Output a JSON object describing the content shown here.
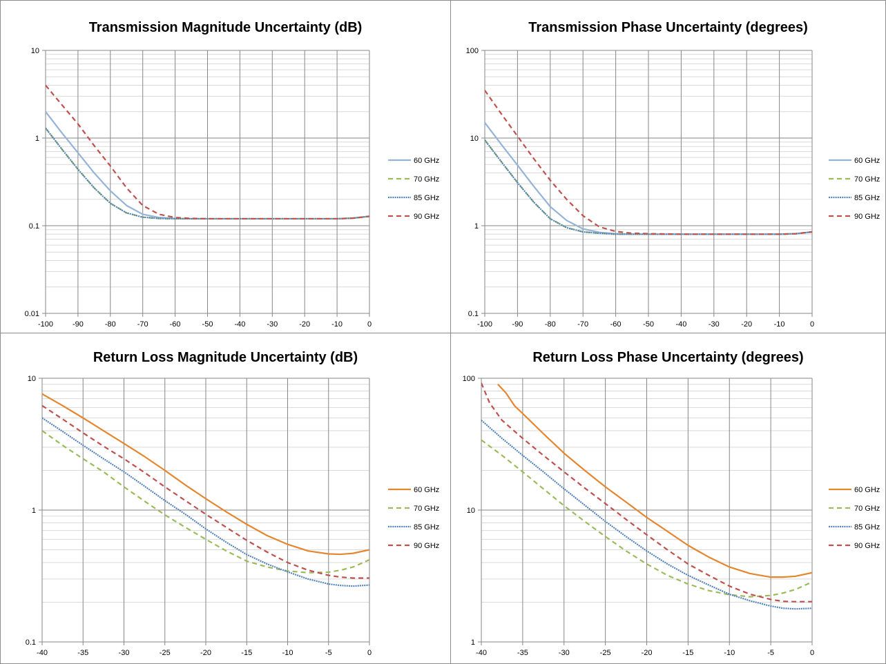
{
  "chart_data": [
    {
      "type": "line",
      "title": "Transmission Magnitude Uncertainty (dB)",
      "yscale": "log",
      "ylim": [
        0.01,
        10
      ],
      "xlim": [
        -100,
        0
      ],
      "x_ticks": [
        "-100",
        "-90",
        "-80",
        "-70",
        "-60",
        "-50",
        "-40",
        "-30",
        "-20",
        "-10",
        "0"
      ],
      "y_ticks": [
        "10",
        "1",
        "0.1",
        "0.01"
      ],
      "grid": true,
      "legend_position": "right",
      "x": [
        -100,
        -95,
        -90,
        -85,
        -80,
        -75,
        -70,
        -65,
        -60,
        -55,
        -50,
        -40,
        -30,
        -20,
        -10,
        -5,
        0
      ],
      "series": [
        {
          "name": "60 GHz",
          "color": "#95b3d7",
          "dash": "solid",
          "values": [
            2.0,
            1.15,
            0.68,
            0.4,
            0.25,
            0.17,
            0.135,
            0.124,
            0.121,
            0.12,
            0.12,
            0.12,
            0.12,
            0.12,
            0.12,
            0.122,
            0.128
          ]
        },
        {
          "name": "70 GHz",
          "color": "#9bbb59",
          "dash": "dash",
          "values": [
            1.3,
            0.75,
            0.44,
            0.27,
            0.18,
            0.14,
            0.125,
            0.121,
            0.12,
            0.12,
            0.12,
            0.12,
            0.12,
            0.12,
            0.12,
            0.122,
            0.128
          ]
        },
        {
          "name": "85 GHz",
          "color": "#4f81bd",
          "dash": "dot",
          "values": [
            1.3,
            0.75,
            0.44,
            0.27,
            0.18,
            0.14,
            0.125,
            0.121,
            0.12,
            0.12,
            0.12,
            0.12,
            0.12,
            0.12,
            0.12,
            0.122,
            0.128
          ]
        },
        {
          "name": "90 GHz",
          "color": "#c0504d",
          "dash": "dash",
          "values": [
            4.0,
            2.4,
            1.45,
            0.82,
            0.48,
            0.27,
            0.17,
            0.135,
            0.124,
            0.121,
            0.12,
            0.12,
            0.12,
            0.12,
            0.12,
            0.122,
            0.128
          ]
        }
      ]
    },
    {
      "type": "line",
      "title": "Transmission Phase Uncertainty (degrees)",
      "yscale": "log",
      "ylim": [
        0.1,
        100
      ],
      "xlim": [
        -100,
        0
      ],
      "x_ticks": [
        "-100",
        "-90",
        "-80",
        "-70",
        "-60",
        "-50",
        "-40",
        "-30",
        "-20",
        "-10",
        "0"
      ],
      "y_ticks": [
        "100",
        "10",
        "1",
        "0.1"
      ],
      "grid": true,
      "legend_position": "right",
      "x": [
        -100,
        -95,
        -90,
        -85,
        -80,
        -75,
        -70,
        -65,
        -60,
        -55,
        -50,
        -40,
        -30,
        -20,
        -10,
        -5,
        0
      ],
      "series": [
        {
          "name": "60 GHz",
          "color": "#95b3d7",
          "dash": "solid",
          "values": [
            15,
            8.5,
            4.9,
            2.8,
            1.65,
            1.15,
            0.92,
            0.84,
            0.81,
            0.8,
            0.8,
            0.8,
            0.8,
            0.8,
            0.8,
            0.81,
            0.85
          ]
        },
        {
          "name": "70 GHz",
          "color": "#9bbb59",
          "dash": "dash",
          "values": [
            9.5,
            5.4,
            3.1,
            1.85,
            1.2,
            0.95,
            0.85,
            0.82,
            0.8,
            0.8,
            0.8,
            0.8,
            0.8,
            0.8,
            0.8,
            0.81,
            0.85
          ]
        },
        {
          "name": "85 GHz",
          "color": "#4f81bd",
          "dash": "dot",
          "values": [
            9.5,
            5.4,
            3.1,
            1.85,
            1.2,
            0.95,
            0.85,
            0.82,
            0.8,
            0.8,
            0.8,
            0.8,
            0.8,
            0.8,
            0.8,
            0.81,
            0.85
          ]
        },
        {
          "name": "90 GHz",
          "color": "#c0504d",
          "dash": "dash",
          "values": [
            35,
            19,
            10.5,
            5.8,
            3.3,
            2.0,
            1.3,
            0.97,
            0.86,
            0.82,
            0.81,
            0.8,
            0.8,
            0.8,
            0.8,
            0.81,
            0.85
          ]
        }
      ]
    },
    {
      "type": "line",
      "title": "Return Loss Magnitude Uncertainty (dB)",
      "yscale": "log",
      "ylim": [
        0.1,
        10
      ],
      "xlim": [
        -40,
        0
      ],
      "x_ticks": [
        "-40",
        "-35",
        "-30",
        "-25",
        "-20",
        "-15",
        "-10",
        "-5",
        "0"
      ],
      "y_ticks": [
        "10",
        "1",
        "0.1"
      ],
      "grid": true,
      "legend_position": "right",
      "x": [
        -40,
        -37.5,
        -35,
        -32.5,
        -30,
        -27.5,
        -25,
        -22.5,
        -20,
        -17.5,
        -15,
        -12.5,
        -10,
        -7.5,
        -5,
        -3.5,
        -2,
        0
      ],
      "series": [
        {
          "name": "60 GHz",
          "color": "#e5862f",
          "dash": "solid",
          "values": [
            7.6,
            6.2,
            5.0,
            4.0,
            3.2,
            2.55,
            2.0,
            1.55,
            1.22,
            0.97,
            0.78,
            0.64,
            0.55,
            0.49,
            0.465,
            0.462,
            0.47,
            0.5
          ]
        },
        {
          "name": "70 GHz",
          "color": "#9bbb59",
          "dash": "dash",
          "values": [
            4.0,
            3.1,
            2.45,
            1.95,
            1.5,
            1.17,
            0.92,
            0.74,
            0.6,
            0.49,
            0.41,
            0.37,
            0.345,
            0.335,
            0.338,
            0.35,
            0.37,
            0.42
          ]
        },
        {
          "name": "85 GHz",
          "color": "#4f81bd",
          "dash": "dot",
          "values": [
            5.0,
            3.95,
            3.1,
            2.45,
            1.95,
            1.52,
            1.18,
            0.93,
            0.72,
            0.57,
            0.46,
            0.39,
            0.34,
            0.3,
            0.275,
            0.268,
            0.265,
            0.27
          ]
        },
        {
          "name": "90 GHz",
          "color": "#c0504d",
          "dash": "dash",
          "values": [
            6.2,
            4.9,
            3.85,
            3.05,
            2.45,
            1.93,
            1.5,
            1.18,
            0.93,
            0.74,
            0.59,
            0.48,
            0.4,
            0.35,
            0.32,
            0.31,
            0.305,
            0.305
          ]
        }
      ]
    },
    {
      "type": "line",
      "title": "Return Loss Phase Uncertainty (degrees)",
      "yscale": "log",
      "ylim": [
        1,
        100
      ],
      "xlim": [
        -40,
        0
      ],
      "x_ticks": [
        "-40",
        "-35",
        "-30",
        "-25",
        "-20",
        "-15",
        "-10",
        "-5",
        "0"
      ],
      "y_ticks": [
        "100",
        "10",
        "1"
      ],
      "grid": true,
      "legend_position": "right",
      "series": [
        {
          "name": "60 GHz",
          "color": "#e5862f",
          "dash": "solid",
          "x": [
            -38,
            -37,
            -36,
            -35,
            -32.5,
            -30,
            -27.5,
            -25,
            -22.5,
            -20,
            -17.5,
            -15,
            -12.5,
            -10,
            -7.5,
            -5,
            -3.5,
            -2,
            0
          ],
          "values": [
            90,
            77,
            62,
            54,
            38,
            27,
            20,
            15,
            11.5,
            8.8,
            6.9,
            5.4,
            4.4,
            3.7,
            3.3,
            3.1,
            3.1,
            3.15,
            3.35
          ]
        },
        {
          "name": "70 GHz",
          "color": "#9bbb59",
          "dash": "dash",
          "x": [
            -40,
            -37.5,
            -35,
            -32.5,
            -30,
            -27.5,
            -25,
            -22.5,
            -20,
            -17.5,
            -15,
            -12.5,
            -10,
            -7.5,
            -5,
            -3.5,
            -2,
            0
          ],
          "values": [
            34,
            26,
            19.5,
            14.5,
            10.8,
            8.2,
            6.3,
            4.9,
            3.9,
            3.2,
            2.75,
            2.45,
            2.28,
            2.2,
            2.25,
            2.35,
            2.5,
            2.85
          ]
        },
        {
          "name": "85 GHz",
          "color": "#4f81bd",
          "dash": "dot",
          "x": [
            -40,
            -37.5,
            -35,
            -32.5,
            -30,
            -27.5,
            -25,
            -22.5,
            -20,
            -17.5,
            -15,
            -12.5,
            -10,
            -7.5,
            -5,
            -3.5,
            -2,
            0
          ],
          "values": [
            48,
            35,
            26,
            19.5,
            14.5,
            10.9,
            8.2,
            6.3,
            4.9,
            3.9,
            3.2,
            2.7,
            2.3,
            2.05,
            1.87,
            1.8,
            1.78,
            1.8
          ]
        },
        {
          "name": "90 GHz",
          "color": "#c0504d",
          "dash": "dash",
          "x": [
            -40,
            -39,
            -37.5,
            -35,
            -32.5,
            -30,
            -27.5,
            -25,
            -22.5,
            -20,
            -17.5,
            -15,
            -12.5,
            -10,
            -7.5,
            -5,
            -3.5,
            -2,
            0
          ],
          "values": [
            92,
            65,
            48,
            35,
            26,
            19.5,
            14.7,
            11.2,
            8.5,
            6.5,
            5.0,
            3.9,
            3.2,
            2.65,
            2.3,
            2.1,
            2.03,
            2.02,
            2.02
          ]
        }
      ]
    }
  ]
}
